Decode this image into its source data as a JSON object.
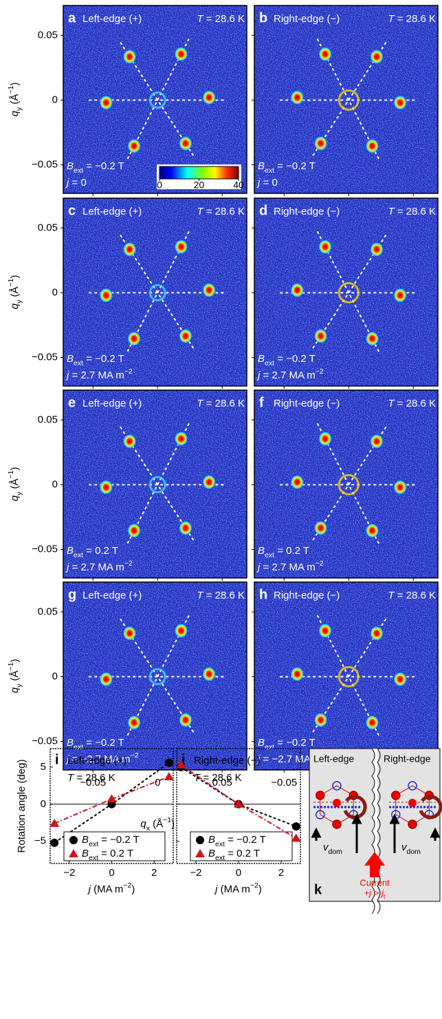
{
  "sans": {
    "xlim": [
      -0.073,
      0.069
    ],
    "ylim": [
      -0.072,
      0.073
    ],
    "xticks": [
      {
        "value": -0.05,
        "label": "−0.05"
      },
      0,
      0.05
    ],
    "yticks": [
      0.05,
      0,
      {
        "value": -0.05,
        "label": "−0.05"
      }
    ],
    "x_label": [
      [
        "q",
        "i"
      ],
      [
        "x",
        "sub"
      ],
      [
        " (Å",
        "n"
      ],
      [
        "−1",
        "sup"
      ],
      [
        ")",
        "n"
      ]
    ],
    "y_label": [
      [
        "q",
        "i"
      ],
      [
        "y",
        "sub"
      ],
      [
        " (Å",
        "n"
      ],
      [
        "−1",
        "sup"
      ],
      [
        ")",
        "n"
      ]
    ],
    "colorbar": {
      "lim": [
        0,
        40
      ],
      "ticks": [
        0,
        20,
        40
      ]
    },
    "panels": [
      {
        "letter": "a",
        "edge": "Left-edge (+)",
        "temperature": [
          [
            "T",
            "i"
          ],
          [
            " = 28.6 K",
            "n"
          ]
        ],
        "field": [
          [
            "B",
            "i"
          ],
          [
            "ext",
            "sub"
          ],
          [
            " = −0.2 T",
            "n"
          ]
        ],
        "current": [
          [
            "j",
            "i"
          ],
          [
            " = 0",
            "n"
          ]
        ]
      },
      {
        "letter": "b",
        "edge": "Right-edge (−)",
        "temperature": [
          [
            "T",
            "i"
          ],
          [
            " = 28.6 K",
            "n"
          ]
        ],
        "field": [
          [
            "B",
            "i"
          ],
          [
            "ext",
            "sub"
          ],
          [
            " = −0.2 T",
            "n"
          ]
        ],
        "current": [
          [
            "j",
            "i"
          ],
          [
            " = 0",
            "n"
          ]
        ]
      },
      {
        "letter": "c",
        "edge": "Left-edge (+)",
        "temperature": [
          [
            "T",
            "i"
          ],
          [
            " = 28.6 K",
            "n"
          ]
        ],
        "field": [
          [
            "B",
            "i"
          ],
          [
            "ext",
            "sub"
          ],
          [
            " = −0.2 T",
            "n"
          ]
        ],
        "current": [
          [
            "j",
            "i"
          ],
          [
            " = 2.7 MA m",
            "n"
          ],
          [
            "−2",
            "sup"
          ]
        ]
      },
      {
        "letter": "d",
        "edge": "Right-edge (−)",
        "temperature": [
          [
            "T",
            "i"
          ],
          [
            " = 28.6 K",
            "n"
          ]
        ],
        "field": [
          [
            "B",
            "i"
          ],
          [
            "ext",
            "sub"
          ],
          [
            " = −0.2 T",
            "n"
          ]
        ],
        "current": [
          [
            "j",
            "i"
          ],
          [
            " = 2.7 MA m",
            "n"
          ],
          [
            "−2",
            "sup"
          ]
        ]
      },
      {
        "letter": "e",
        "edge": "Left-edge (+)",
        "temperature": [
          [
            "T",
            "i"
          ],
          [
            " = 28.6 K",
            "n"
          ]
        ],
        "field": [
          [
            "B",
            "i"
          ],
          [
            "ext",
            "sub"
          ],
          [
            " = 0.2 T",
            "n"
          ]
        ],
        "current": [
          [
            "j",
            "i"
          ],
          [
            " = 2.7 MA m",
            "n"
          ],
          [
            "−2",
            "sup"
          ]
        ]
      },
      {
        "letter": "f",
        "edge": "Right-edge (−)",
        "temperature": [
          [
            "T",
            "i"
          ],
          [
            " = 28.6 K",
            "n"
          ]
        ],
        "field": [
          [
            "B",
            "i"
          ],
          [
            "ext",
            "sub"
          ],
          [
            " = 0.2 T",
            "n"
          ]
        ],
        "current": [
          [
            "j",
            "i"
          ],
          [
            " = 2.7 MA m",
            "n"
          ],
          [
            "−2",
            "sup"
          ]
        ]
      },
      {
        "letter": "g",
        "edge": "Left-edge (+)",
        "temperature": [
          [
            "T",
            "i"
          ],
          [
            " = 28.6 K",
            "n"
          ]
        ],
        "field": [
          [
            "B",
            "i"
          ],
          [
            "ext",
            "sub"
          ],
          [
            " = −0.2 T",
            "n"
          ]
        ],
        "current": [
          [
            "j",
            "i"
          ],
          [
            " = −2.7 MA m",
            "n"
          ],
          [
            "−2",
            "sup"
          ]
        ]
      },
      {
        "letter": "h",
        "edge": "Right-edge (−)",
        "temperature": [
          [
            "T",
            "i"
          ],
          [
            " = 28.6 K",
            "n"
          ]
        ],
        "field": [
          [
            "B",
            "i"
          ],
          [
            "ext",
            "sub"
          ],
          [
            " = −0.2 T",
            "n"
          ]
        ],
        "current": [
          [
            "j",
            "i"
          ],
          [
            " = −2.7 MA m",
            "n"
          ],
          [
            "−2",
            "sup"
          ]
        ]
      }
    ]
  },
  "chart_data": [
    {
      "type": "line",
      "letter": "i",
      "title": "Left-edge (+)",
      "temperature": [
        [
          "T",
          "i"
        ],
        [
          " = 28.6 K",
          "n"
        ]
      ],
      "y_label": "Rotation angle (deg)",
      "x_label": [
        [
          "j",
          "i"
        ],
        [
          " (MA m",
          "n"
        ],
        [
          "−2",
          "sup"
        ],
        [
          ")",
          "n"
        ]
      ],
      "x": [
        -2.7,
        0,
        2.7
      ],
      "xlim": [
        -2.9,
        2.9
      ],
      "xticks": [
        {
          "value": -2,
          "label": "−2"
        },
        0,
        2
      ],
      "ylim": [
        -8,
        7.5
      ],
      "yticks": [
        5,
        0,
        {
          "value": -5,
          "label": "−5"
        }
      ],
      "series": [
        {
          "name": [
            [
              "B",
              "i"
            ],
            [
              "ext",
              "sub"
            ],
            [
              " = −0.2 T",
              "n"
            ]
          ],
          "color": "#000000",
          "marker": "circle",
          "dash": "dashed",
          "values": [
            -5.2,
            0,
            5.6
          ]
        },
        {
          "name": [
            [
              "B",
              "i"
            ],
            [
              "ext",
              "sub"
            ],
            [
              " = 0.2 T",
              "n"
            ]
          ],
          "color": "#d0141a",
          "marker": "triangle",
          "dash": "dashdot",
          "values": [
            -2.6,
            0.7,
            3.7
          ]
        }
      ]
    },
    {
      "type": "line",
      "letter": "j",
      "title": "Right-edge (−)",
      "temperature": [
        [
          "T",
          "i"
        ],
        [
          " = 28.6 K",
          "n"
        ]
      ],
      "x_label": [
        [
          "j",
          "i"
        ],
        [
          " (MA m",
          "n"
        ],
        [
          "−2",
          "sup"
        ],
        [
          ")",
          "n"
        ]
      ],
      "x": [
        -2.7,
        0,
        2.7
      ],
      "xlim": [
        -2.9,
        2.9
      ],
      "xticks": [
        {
          "value": -2,
          "label": "−2"
        },
        0,
        2
      ],
      "ylim": [
        -8,
        7.5
      ],
      "yticks": [
        5,
        0,
        {
          "value": -5,
          "label": "−5"
        }
      ],
      "series": [
        {
          "name": [
            [
              "B",
              "i"
            ],
            [
              "ext",
              "sub"
            ],
            [
              " = −0.2 T",
              "n"
            ]
          ],
          "color": "#000000",
          "marker": "circle",
          "dash": "dashed",
          "values": [
            5.0,
            0,
            -3.0
          ]
        },
        {
          "name": [
            [
              "B",
              "i"
            ],
            [
              "ext",
              "sub"
            ],
            [
              " = 0.2 T",
              "n"
            ]
          ],
          "color": "#d0141a",
          "marker": "triangle",
          "dash": "dashdot",
          "values": [
            5.3,
            0,
            -4.6
          ]
        }
      ]
    }
  ],
  "diagram": {
    "letter": "k",
    "left": "Left-edge",
    "right": "Right-edge",
    "velocity": [
      [
        "v",
        "i"
      ],
      [
        "dom",
        "sub"
      ]
    ],
    "current": "Current",
    "condition": [
      [
        "+",
        "n"
      ],
      [
        "j",
        "i"
      ],
      [
        " > ",
        "n"
      ],
      [
        "j",
        "i"
      ],
      [
        "t",
        "sub"
      ]
    ]
  }
}
